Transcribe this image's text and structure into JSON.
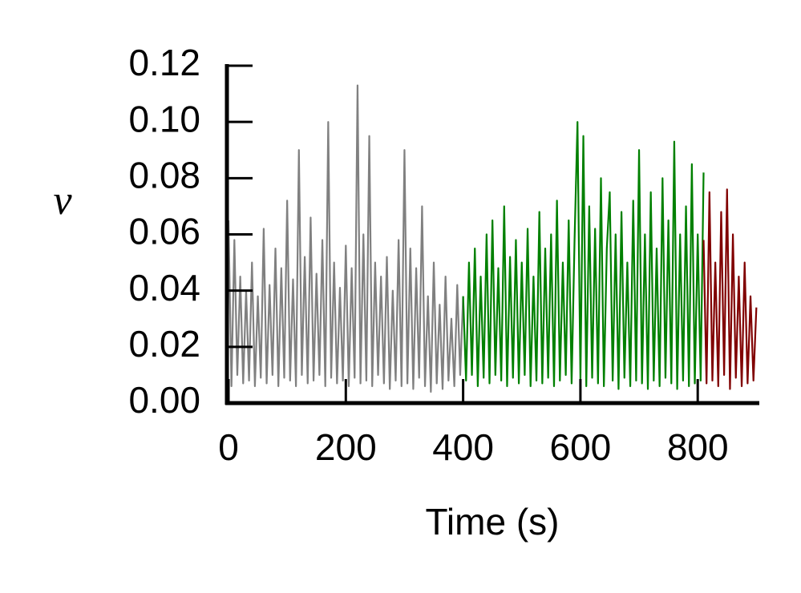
{
  "chart_data": {
    "type": "line",
    "xlabel": "Time (s)",
    "ylabel": "ν",
    "xlim": [
      0,
      905
    ],
    "ylim": [
      0,
      0.12
    ],
    "xticks": [
      0,
      200,
      400,
      600,
      800
    ],
    "yticks": [
      {
        "value": 0,
        "label": "0.00"
      },
      {
        "value": 0.02,
        "label": "0.02"
      },
      {
        "value": 0.04,
        "label": "0.04"
      },
      {
        "value": 0.06,
        "label": "0.06"
      },
      {
        "value": 0.08,
        "label": "0.08"
      },
      {
        "value": 0.1,
        "label": "0.10"
      },
      {
        "value": 0.12,
        "label": "0.12"
      }
    ],
    "grid": false,
    "series": [
      {
        "color": "#808080",
        "x": [
          0,
          5,
          10,
          15,
          20,
          25,
          30,
          35,
          40,
          45,
          50,
          55,
          60,
          65,
          70,
          75,
          80,
          85,
          90,
          95,
          100,
          105,
          110,
          115,
          120,
          125,
          130,
          135,
          140,
          145,
          150,
          155,
          160,
          165,
          170,
          175,
          180,
          185,
          190,
          195,
          200,
          205,
          210,
          215,
          220,
          225,
          230,
          235,
          240,
          245,
          250,
          255,
          260,
          265,
          270,
          275,
          280,
          285,
          290,
          295,
          300,
          305,
          310,
          315,
          320,
          325,
          330,
          335,
          340,
          345,
          350,
          355,
          360,
          365,
          370,
          375,
          380,
          385,
          390,
          395,
          400
        ],
        "values": [
          0.065,
          0.006,
          0.058,
          0.01,
          0.045,
          0.007,
          0.04,
          0.008,
          0.05,
          0.006,
          0.038,
          0.009,
          0.062,
          0.007,
          0.042,
          0.01,
          0.055,
          0.006,
          0.048,
          0.009,
          0.072,
          0.008,
          0.044,
          0.006,
          0.09,
          0.01,
          0.052,
          0.007,
          0.066,
          0.008,
          0.046,
          0.01,
          0.058,
          0.006,
          0.1,
          0.009,
          0.05,
          0.007,
          0.041,
          0.008,
          0.056,
          0.006,
          0.048,
          0.009,
          0.113,
          0.007,
          0.06,
          0.008,
          0.095,
          0.006,
          0.05,
          0.01,
          0.045,
          0.007,
          0.052,
          0.005,
          0.04,
          0.008,
          0.058,
          0.006,
          0.09,
          0.007,
          0.055,
          0.005,
          0.048,
          0.009,
          0.07,
          0.006,
          0.038,
          0.004,
          0.05,
          0.007,
          0.035,
          0.005,
          0.045,
          0.008,
          0.03,
          0.006,
          0.042,
          0.01,
          0.038
        ]
      },
      {
        "color": "#008000",
        "x": [
          400,
          405,
          410,
          415,
          420,
          425,
          430,
          435,
          440,
          445,
          450,
          455,
          460,
          465,
          470,
          475,
          480,
          485,
          490,
          495,
          500,
          505,
          510,
          515,
          520,
          525,
          530,
          535,
          540,
          545,
          550,
          555,
          560,
          565,
          570,
          575,
          580,
          585,
          590,
          595,
          600,
          605,
          610,
          615,
          620,
          625,
          630,
          635,
          640,
          645,
          650,
          655,
          660,
          665,
          670,
          675,
          680,
          685,
          690,
          695,
          700,
          705,
          710,
          715,
          720,
          725,
          730,
          735,
          740,
          745,
          750,
          755,
          760,
          765,
          770,
          775,
          780,
          785,
          790,
          795,
          800,
          805,
          810
        ],
        "values": [
          0.038,
          0.008,
          0.05,
          0.01,
          0.055,
          0.006,
          0.045,
          0.009,
          0.06,
          0.007,
          0.065,
          0.01,
          0.048,
          0.008,
          0.07,
          0.006,
          0.052,
          0.009,
          0.058,
          0.007,
          0.05,
          0.01,
          0.062,
          0.006,
          0.045,
          0.008,
          0.068,
          0.007,
          0.055,
          0.009,
          0.06,
          0.006,
          0.072,
          0.008,
          0.05,
          0.01,
          0.065,
          0.007,
          0.058,
          0.1,
          0.008,
          0.095,
          0.006,
          0.07,
          0.009,
          0.062,
          0.007,
          0.08,
          0.006,
          0.055,
          0.075,
          0.008,
          0.06,
          0.005,
          0.068,
          0.009,
          0.05,
          0.006,
          0.072,
          0.008,
          0.09,
          0.007,
          0.06,
          0.005,
          0.075,
          0.008,
          0.055,
          0.006,
          0.08,
          0.009,
          0.065,
          0.007,
          0.093,
          0.005,
          0.06,
          0.008,
          0.07,
          0.006,
          0.085,
          0.007,
          0.06,
          0.008,
          0.082
        ]
      },
      {
        "color": "#800000",
        "x": [
          810,
          815,
          820,
          825,
          830,
          835,
          840,
          845,
          850,
          855,
          860,
          865,
          870,
          875,
          880,
          885,
          890,
          895,
          900
        ],
        "values": [
          0.058,
          0.007,
          0.075,
          0.008,
          0.05,
          0.006,
          0.068,
          0.01,
          0.076,
          0.005,
          0.06,
          0.009,
          0.045,
          0.006,
          0.05,
          0.007,
          0.038,
          0.008,
          0.034
        ]
      }
    ]
  }
}
